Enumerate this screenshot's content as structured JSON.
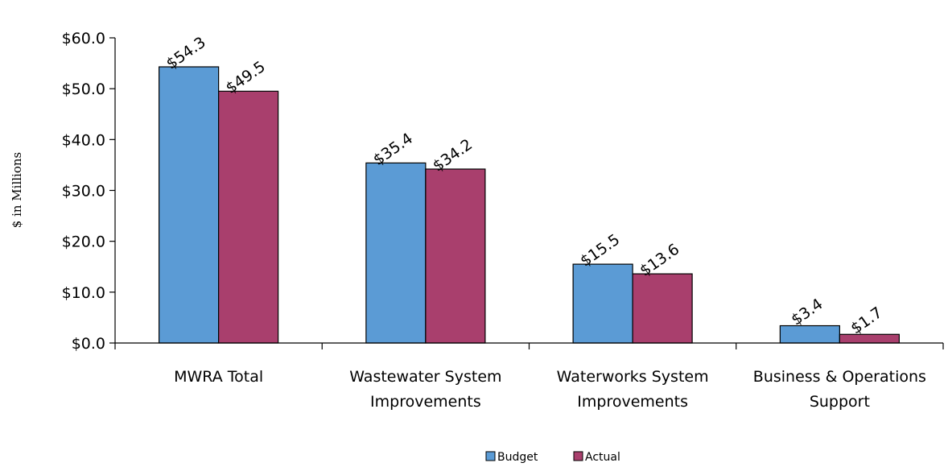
{
  "chart_data": {
    "type": "bar",
    "categories": [
      [
        "MWRA Total"
      ],
      [
        "Wastewater System",
        "Improvements"
      ],
      [
        "Waterworks System",
        "Improvements"
      ],
      [
        "Business & Operations",
        "Support"
      ]
    ],
    "series": [
      {
        "name": "Budget",
        "color": "#5b9bd5",
        "values": [
          54.3,
          35.4,
          15.5,
          3.4
        ],
        "labels": [
          "$54.3",
          "$35.4",
          "$15.5",
          "$3.4"
        ]
      },
      {
        "name": "Actual",
        "color": "#a93f6d",
        "values": [
          49.5,
          34.2,
          13.6,
          1.7
        ],
        "labels": [
          "$49.5",
          "$34.2",
          "$13.6",
          "$1.7"
        ]
      }
    ],
    "ylabel": "$ in Millions",
    "ylim": [
      0,
      60
    ],
    "yticks": [
      0,
      10,
      20,
      30,
      40,
      50,
      60
    ],
    "ytick_labels": [
      "$0.0",
      "$10.0",
      "$20.0",
      "$30.0",
      "$40.0",
      "$50.0",
      "$60.0"
    ],
    "grid": false,
    "legend_position": "bottom"
  }
}
